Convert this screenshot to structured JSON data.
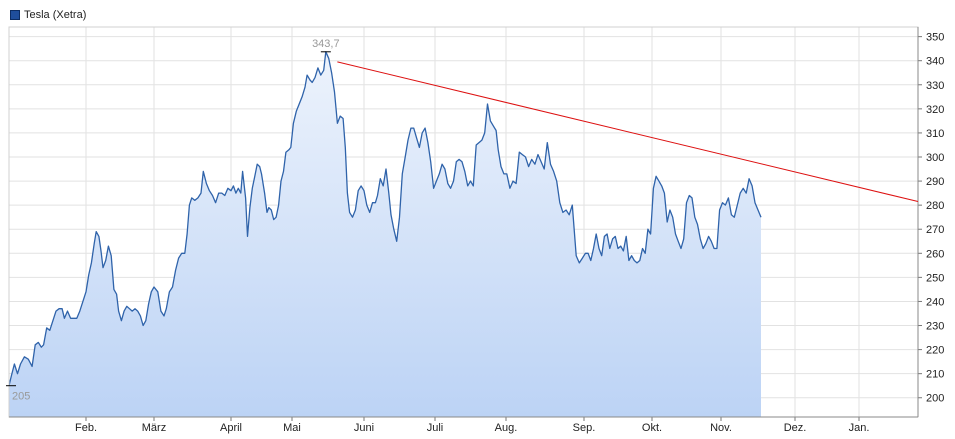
{
  "legend": {
    "label": "Tesla (Xetra)"
  },
  "colors": {
    "line": "#2f63aa",
    "fill_top": "#edf3fc",
    "fill_bottom": "#bcd3f5",
    "trend": "#dd1111",
    "grid": "#e2e2e2",
    "annotation": "#999999"
  },
  "chart_data": {
    "type": "area",
    "series": [
      {
        "name": "Tesla (Xetra)"
      }
    ],
    "x_tick_labels": [
      "Feb.",
      "März",
      "April",
      "Mai",
      "Juni",
      "Juli",
      "Aug.",
      "Sep.",
      "Okt.",
      "Nov.",
      "Dez.",
      "Jan."
    ],
    "y_ticks": [
      200,
      210,
      220,
      230,
      240,
      250,
      260,
      270,
      280,
      290,
      300,
      310,
      320,
      330,
      340,
      350
    ],
    "ylim": [
      192,
      354
    ],
    "annotations": {
      "min_label": "205",
      "max_label": "343,7",
      "min_value": 205,
      "max_value": 343.7
    },
    "trendline": {
      "from": {
        "month": 4.63,
        "value": 339.5
      },
      "to": {
        "month": 11.9,
        "value": 281.5
      }
    },
    "points": [
      [
        0.0,
        205
      ],
      [
        0.03,
        209
      ],
      [
        0.07,
        214
      ],
      [
        0.11,
        210
      ],
      [
        0.15,
        214
      ],
      [
        0.2,
        217
      ],
      [
        0.25,
        216
      ],
      [
        0.3,
        213
      ],
      [
        0.34,
        222
      ],
      [
        0.38,
        223
      ],
      [
        0.42,
        221
      ],
      [
        0.45,
        222
      ],
      [
        0.49,
        229
      ],
      [
        0.53,
        228
      ],
      [
        0.57,
        232
      ],
      [
        0.61,
        236
      ],
      [
        0.65,
        237
      ],
      [
        0.69,
        237
      ],
      [
        0.72,
        233
      ],
      [
        0.76,
        236
      ],
      [
        0.8,
        233
      ],
      [
        0.84,
        233
      ],
      [
        0.88,
        233
      ],
      [
        0.92,
        236
      ],
      [
        0.96,
        240
      ],
      [
        1.0,
        244
      ],
      [
        1.04,
        251
      ],
      [
        1.08,
        256
      ],
      [
        1.12,
        264
      ],
      [
        1.15,
        269
      ],
      [
        1.19,
        267
      ],
      [
        1.22,
        261
      ],
      [
        1.25,
        254
      ],
      [
        1.29,
        257
      ],
      [
        1.33,
        263
      ],
      [
        1.37,
        259
      ],
      [
        1.41,
        245
      ],
      [
        1.45,
        243
      ],
      [
        1.48,
        236
      ],
      [
        1.52,
        232
      ],
      [
        1.56,
        236
      ],
      [
        1.6,
        238
      ],
      [
        1.64,
        237
      ],
      [
        1.68,
        236
      ],
      [
        1.72,
        237
      ],
      [
        1.76,
        236
      ],
      [
        1.8,
        234
      ],
      [
        1.84,
        230
      ],
      [
        1.88,
        232
      ],
      [
        1.92,
        239
      ],
      [
        1.96,
        244
      ],
      [
        2.0,
        246
      ],
      [
        2.05,
        244
      ],
      [
        2.09,
        236
      ],
      [
        2.13,
        234
      ],
      [
        2.16,
        237
      ],
      [
        2.2,
        244
      ],
      [
        2.24,
        246
      ],
      [
        2.28,
        253
      ],
      [
        2.32,
        258
      ],
      [
        2.36,
        260
      ],
      [
        2.4,
        260
      ],
      [
        2.43,
        268
      ],
      [
        2.46,
        280
      ],
      [
        2.49,
        283
      ],
      [
        2.53,
        282
      ],
      [
        2.57,
        283
      ],
      [
        2.61,
        285
      ],
      [
        2.64,
        294
      ],
      [
        2.68,
        289
      ],
      [
        2.72,
        286
      ],
      [
        2.76,
        284
      ],
      [
        2.8,
        281
      ],
      [
        2.84,
        285
      ],
      [
        2.88,
        285
      ],
      [
        2.92,
        284
      ],
      [
        2.96,
        287
      ],
      [
        3.0,
        286
      ],
      [
        3.04,
        288
      ],
      [
        3.08,
        285
      ],
      [
        3.12,
        287
      ],
      [
        3.16,
        285
      ],
      [
        3.19,
        294
      ],
      [
        3.24,
        283
      ],
      [
        3.27,
        267
      ],
      [
        3.31,
        279
      ],
      [
        3.35,
        287
      ],
      [
        3.39,
        292
      ],
      [
        3.43,
        297
      ],
      [
        3.47,
        296
      ],
      [
        3.5,
        293
      ],
      [
        3.55,
        285
      ],
      [
        3.59,
        277
      ],
      [
        3.62,
        279
      ],
      [
        3.66,
        278
      ],
      [
        3.7,
        274
      ],
      [
        3.74,
        275
      ],
      [
        3.78,
        280
      ],
      [
        3.82,
        290
      ],
      [
        3.86,
        294
      ],
      [
        3.9,
        302
      ],
      [
        3.95,
        303
      ],
      [
        3.98,
        304
      ],
      [
        4.02,
        314
      ],
      [
        4.06,
        319
      ],
      [
        4.1,
        322
      ],
      [
        4.14,
        325
      ],
      [
        4.18,
        329
      ],
      [
        4.21,
        334
      ],
      [
        4.25,
        332
      ],
      [
        4.28,
        331
      ],
      [
        4.32,
        333
      ],
      [
        4.36,
        337
      ],
      [
        4.4,
        334
      ],
      [
        4.44,
        336
      ],
      [
        4.47,
        343.7
      ],
      [
        4.51,
        341
      ],
      [
        4.55,
        335
      ],
      [
        4.59,
        327
      ],
      [
        4.63,
        314
      ],
      [
        4.67,
        317
      ],
      [
        4.71,
        316
      ],
      [
        4.74,
        304
      ],
      [
        4.77,
        285
      ],
      [
        4.8,
        277
      ],
      [
        4.84,
        275
      ],
      [
        4.88,
        278
      ],
      [
        4.92,
        286
      ],
      [
        4.96,
        288
      ],
      [
        5.0,
        286
      ],
      [
        5.04,
        280
      ],
      [
        5.08,
        277
      ],
      [
        5.12,
        281
      ],
      [
        5.16,
        281
      ],
      [
        5.19,
        284
      ],
      [
        5.23,
        291
      ],
      [
        5.27,
        288
      ],
      [
        5.31,
        295
      ],
      [
        5.35,
        285
      ],
      [
        5.38,
        276
      ],
      [
        5.42,
        270
      ],
      [
        5.46,
        265
      ],
      [
        5.5,
        275
      ],
      [
        5.54,
        293
      ],
      [
        5.58,
        300
      ],
      [
        5.62,
        307
      ],
      [
        5.66,
        312
      ],
      [
        5.7,
        312
      ],
      [
        5.74,
        308
      ],
      [
        5.78,
        304
      ],
      [
        5.82,
        310
      ],
      [
        5.86,
        312
      ],
      [
        5.9,
        306
      ],
      [
        5.94,
        298
      ],
      [
        5.98,
        287
      ],
      [
        6.02,
        290
      ],
      [
        6.06,
        293
      ],
      [
        6.1,
        297
      ],
      [
        6.14,
        295
      ],
      [
        6.18,
        289
      ],
      [
        6.22,
        287
      ],
      [
        6.26,
        290
      ],
      [
        6.3,
        298
      ],
      [
        6.34,
        299
      ],
      [
        6.38,
        298
      ],
      [
        6.42,
        294
      ],
      [
        6.46,
        288
      ],
      [
        6.5,
        290
      ],
      [
        6.54,
        288
      ],
      [
        6.58,
        305
      ],
      [
        6.62,
        306
      ],
      [
        6.66,
        307
      ],
      [
        6.7,
        310
      ],
      [
        6.74,
        322
      ],
      [
        6.78,
        315
      ],
      [
        6.82,
        313
      ],
      [
        6.86,
        311
      ],
      [
        6.89,
        303
      ],
      [
        6.93,
        296
      ],
      [
        6.97,
        293
      ],
      [
        7.01,
        293
      ],
      [
        7.05,
        287
      ],
      [
        7.09,
        290
      ],
      [
        7.13,
        289
      ],
      [
        7.17,
        302
      ],
      [
        7.21,
        301
      ],
      [
        7.25,
        300
      ],
      [
        7.29,
        296
      ],
      [
        7.33,
        299
      ],
      [
        7.37,
        297
      ],
      [
        7.41,
        301
      ],
      [
        7.45,
        298
      ],
      [
        7.49,
        295
      ],
      [
        7.53,
        306
      ],
      [
        7.57,
        297
      ],
      [
        7.61,
        294
      ],
      [
        7.65,
        290
      ],
      [
        7.69,
        281
      ],
      [
        7.73,
        277
      ],
      [
        7.77,
        278
      ],
      [
        7.81,
        276
      ],
      [
        7.85,
        280
      ],
      [
        7.9,
        259
      ],
      [
        7.94,
        256
      ],
      [
        7.98,
        258
      ],
      [
        8.02,
        260
      ],
      [
        8.06,
        260
      ],
      [
        8.1,
        257
      ],
      [
        8.14,
        262
      ],
      [
        8.18,
        268
      ],
      [
        8.22,
        262
      ],
      [
        8.26,
        259
      ],
      [
        8.3,
        267
      ],
      [
        8.34,
        268
      ],
      [
        8.38,
        262
      ],
      [
        8.42,
        266
      ],
      [
        8.46,
        267
      ],
      [
        8.5,
        262
      ],
      [
        8.54,
        263
      ],
      [
        8.58,
        261
      ],
      [
        8.62,
        267
      ],
      [
        8.66,
        257
      ],
      [
        8.7,
        259
      ],
      [
        8.74,
        257
      ],
      [
        8.78,
        256
      ],
      [
        8.82,
        257
      ],
      [
        8.86,
        262
      ],
      [
        8.9,
        260
      ],
      [
        8.94,
        270
      ],
      [
        8.98,
        268
      ],
      [
        9.02,
        287
      ],
      [
        9.06,
        292
      ],
      [
        9.1,
        290
      ],
      [
        9.14,
        288
      ],
      [
        9.18,
        285
      ],
      [
        9.22,
        273
      ],
      [
        9.26,
        278
      ],
      [
        9.3,
        275
      ],
      [
        9.34,
        268
      ],
      [
        9.38,
        265
      ],
      [
        9.42,
        262
      ],
      [
        9.46,
        266
      ],
      [
        9.5,
        281
      ],
      [
        9.54,
        284
      ],
      [
        9.58,
        283
      ],
      [
        9.62,
        275
      ],
      [
        9.66,
        272
      ],
      [
        9.7,
        266
      ],
      [
        9.74,
        262
      ],
      [
        9.78,
        264
      ],
      [
        9.82,
        267
      ],
      [
        9.86,
        265
      ],
      [
        9.9,
        262
      ],
      [
        9.94,
        262
      ],
      [
        9.98,
        278
      ],
      [
        10.02,
        281
      ],
      [
        10.06,
        280
      ],
      [
        10.1,
        283
      ],
      [
        10.14,
        276
      ],
      [
        10.18,
        275
      ],
      [
        10.22,
        280
      ],
      [
        10.26,
        285
      ],
      [
        10.3,
        287
      ],
      [
        10.34,
        285
      ],
      [
        10.38,
        291
      ],
      [
        10.42,
        288
      ],
      [
        10.46,
        281
      ],
      [
        10.5,
        278
      ],
      [
        10.54,
        275
      ]
    ]
  }
}
